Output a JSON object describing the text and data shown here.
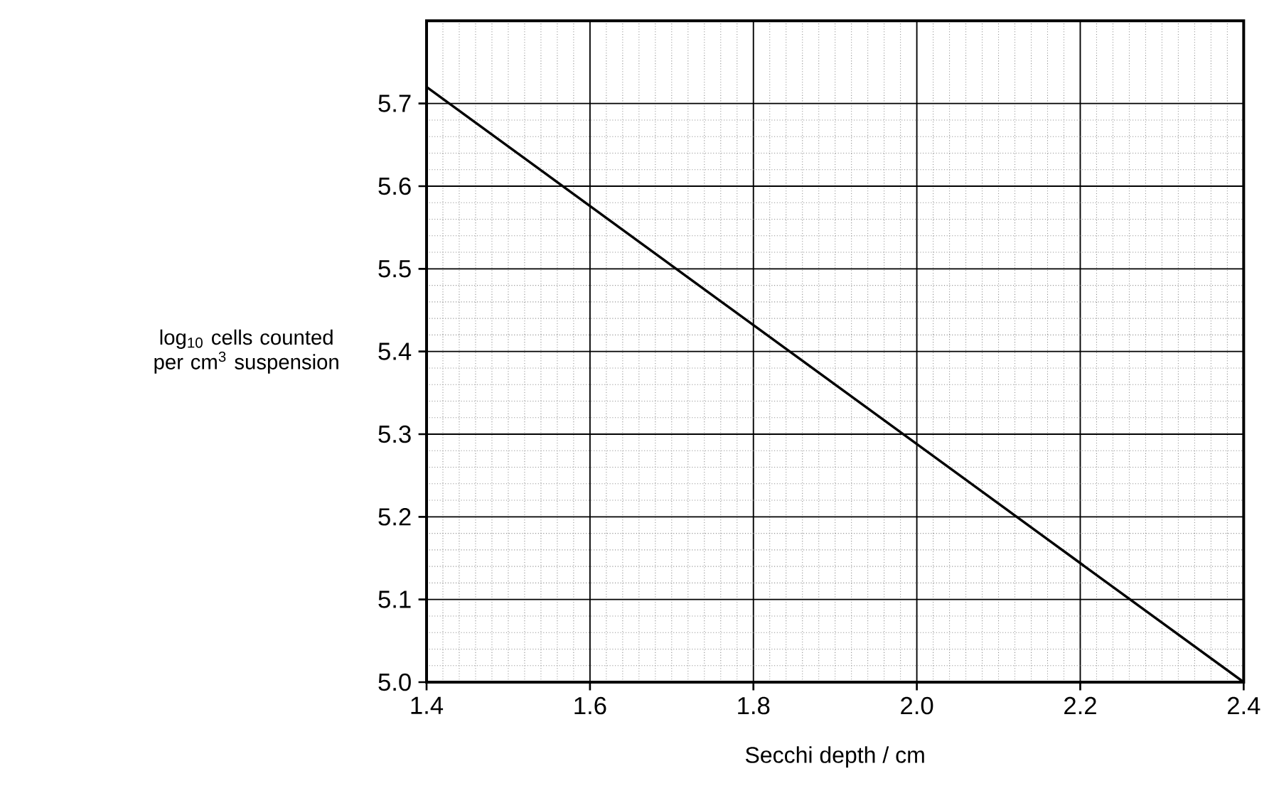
{
  "chart_data": {
    "type": "line",
    "xlabel": "Secchi depth / cm",
    "ylabel": "log$_{10}$ cells counted per cm$^{3}$ suspension",
    "x": [
      1.4,
      2.4
    ],
    "series": [
      {
        "color": "#000000",
        "values": [
          5.72,
          5.0
        ]
      }
    ],
    "xlim": [
      1.4,
      2.4
    ],
    "ylim": [
      5.0,
      5.8
    ],
    "xticks": [
      1.4,
      1.6,
      1.8,
      {
        "value": 2,
        "label": "2.0"
      },
      2.2,
      2.4
    ],
    "yticks": [
      {
        "value": 5,
        "label": "5.0"
      },
      5.1,
      5.2,
      5.3,
      5.4,
      5.5,
      5.6,
      5.7
    ],
    "grid": true,
    "marker": "none",
    "line_style": "solid"
  }
}
